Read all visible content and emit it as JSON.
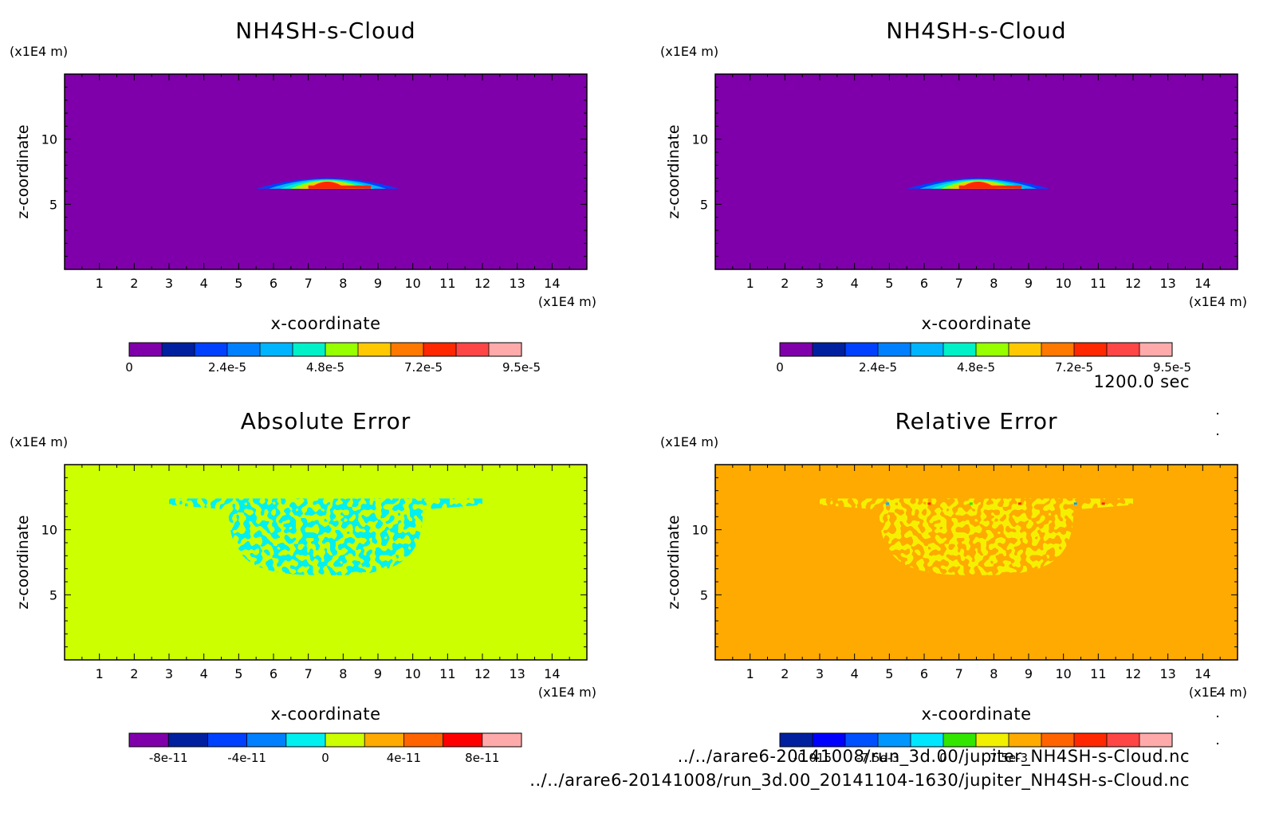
{
  "time_label": "1200.0 sec",
  "files": {
    "line1": "../../arare6-20141008/run_3d.00/jupiter_NH4SH-s-Cloud.nc",
    "line2": "../../arare6-20141008/run_3d.00_20141104-1630/jupiter_NH4SH-s-Cloud.nc"
  },
  "chart_data": [
    {
      "type": "heatmap",
      "title": "NH4SH-s-Cloud",
      "xlabel": "x-coordinate",
      "ylabel": "z-coordinate",
      "x_unit": "(x1E4 m)",
      "y_unit": "(x1E4 m)",
      "xlim": [
        0,
        15
      ],
      "ylim": [
        0,
        15
      ],
      "x_ticks": [
        "1",
        "2",
        "3",
        "4",
        "5",
        "6",
        "7",
        "8",
        "9",
        "10",
        "11",
        "12",
        "13",
        "14"
      ],
      "y_ticks": [
        "5",
        "10"
      ],
      "background_color": "#7f00aa",
      "feature": {
        "kind": "lens",
        "x_range": [
          5.5,
          9.6
        ],
        "z_range": [
          6.2,
          7.0
        ],
        "core_x": [
          7.0,
          8.8
        ],
        "peak_value": 9.5e-05
      },
      "colorbar": {
        "colors": [
          "#7f00aa",
          "#00209f",
          "#0040ff",
          "#0080ff",
          "#00b4ff",
          "#00f0c8",
          "#96ff00",
          "#ffc800",
          "#ff7800",
          "#ff2800",
          "#ff4646",
          "#ffaaaa"
        ],
        "tick_labels": [
          "0",
          "2.4e-5",
          "4.8e-5",
          "7.2e-5",
          "9.5e-5"
        ],
        "tick_positions": [
          0,
          3,
          6,
          9,
          12
        ]
      }
    },
    {
      "type": "heatmap",
      "title": "NH4SH-s-Cloud",
      "xlabel": "x-coordinate",
      "ylabel": "z-coordinate",
      "x_unit": "(x1E4 m)",
      "y_unit": "(x1E4 m)",
      "xlim": [
        0,
        15
      ],
      "ylim": [
        0,
        15
      ],
      "x_ticks": [
        "1",
        "2",
        "3",
        "4",
        "5",
        "6",
        "7",
        "8",
        "9",
        "10",
        "11",
        "12",
        "13",
        "14"
      ],
      "y_ticks": [
        "5",
        "10"
      ],
      "background_color": "#7f00aa",
      "feature": {
        "kind": "lens",
        "x_range": [
          5.5,
          9.6
        ],
        "z_range": [
          6.2,
          7.0
        ],
        "core_x": [
          7.0,
          8.8
        ],
        "peak_value": 9.5e-05
      },
      "colorbar": {
        "colors": [
          "#7f00aa",
          "#00209f",
          "#0040ff",
          "#0080ff",
          "#00b4ff",
          "#00f0c8",
          "#96ff00",
          "#ffc800",
          "#ff7800",
          "#ff2800",
          "#ff4646",
          "#ffaaaa"
        ],
        "tick_labels": [
          "0",
          "2.4e-5",
          "4.8e-5",
          "7.2e-5",
          "9.5e-5"
        ],
        "tick_positions": [
          0,
          3,
          6,
          9,
          12
        ]
      }
    },
    {
      "type": "heatmap",
      "title": "Absolute Error",
      "xlabel": "x-coordinate",
      "ylabel": "z-coordinate",
      "x_unit": "(x1E4 m)",
      "y_unit": "(x1E4 m)",
      "xlim": [
        0,
        15
      ],
      "ylim": [
        0,
        15
      ],
      "x_ticks": [
        "1",
        "2",
        "3",
        "4",
        "5",
        "6",
        "7",
        "8",
        "9",
        "10",
        "11",
        "12",
        "13",
        "14"
      ],
      "y_ticks": [
        "5",
        "10"
      ],
      "background_color": "#ccff00",
      "feature": {
        "kind": "speckle",
        "x_range": [
          3.0,
          12.0
        ],
        "z_range": [
          6.5,
          12.4
        ],
        "color": "#00f0f0"
      },
      "colorbar": {
        "colors": [
          "#7f00aa",
          "#00209f",
          "#0040ff",
          "#0080ff",
          "#00f0f0",
          "#ccff00",
          "#ffaa00",
          "#ff6400",
          "#ff0000",
          "#ffaaaa"
        ],
        "tick_labels": [
          "-8e-11",
          "-4e-11",
          "0",
          "4e-11",
          "8e-11"
        ],
        "tick_positions": [
          1,
          3,
          5,
          7,
          9
        ]
      }
    },
    {
      "type": "heatmap",
      "title": "Relative Error",
      "xlabel": "x-coordinate",
      "ylabel": "z-coordinate",
      "x_unit": "(x1E4 m)",
      "y_unit": "(x1E4 m)",
      "xlim": [
        0,
        15
      ],
      "ylim": [
        0,
        15
      ],
      "x_ticks": [
        "1",
        "2",
        "3",
        "4",
        "5",
        "6",
        "7",
        "8",
        "9",
        "10",
        "11",
        "12",
        "13",
        "14"
      ],
      "y_ticks": [
        "5",
        "10"
      ],
      "background_color": "#ffaa00",
      "feature": {
        "kind": "speckle",
        "x_range": [
          3.0,
          12.0
        ],
        "z_range": [
          6.5,
          12.4
        ],
        "color": "#f5f000"
      },
      "colorbar": {
        "colors": [
          "#00209f",
          "#0000ff",
          "#0050ff",
          "#0096ff",
          "#00e6ff",
          "#32e600",
          "#f0f000",
          "#ffaa00",
          "#ff6400",
          "#ff2800",
          "#ff4646",
          "#ffaaaa"
        ],
        "tick_labels": [
          "-0.015",
          "-7.5e-3",
          "0",
          "7.5e-3"
        ],
        "tick_positions": [
          1,
          3,
          5,
          7
        ]
      }
    }
  ]
}
